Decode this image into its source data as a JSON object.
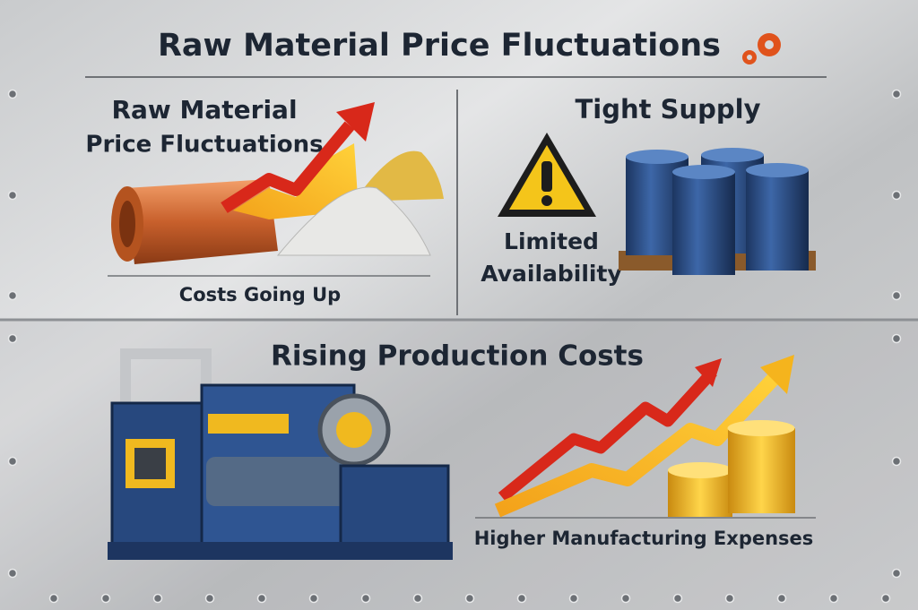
{
  "title": "Raw Material Price Fluctuations",
  "panels": [
    {
      "heading": [
        "Raw Material",
        "Price Fluctuations"
      ],
      "caption": "Costs Going Up"
    },
    {
      "heading": "Tight Supply",
      "label": [
        "Limited",
        "Availability"
      ]
    },
    {
      "heading": "Rising Production Costs",
      "caption": "Higher Manufacturing Expenses"
    }
  ]
}
